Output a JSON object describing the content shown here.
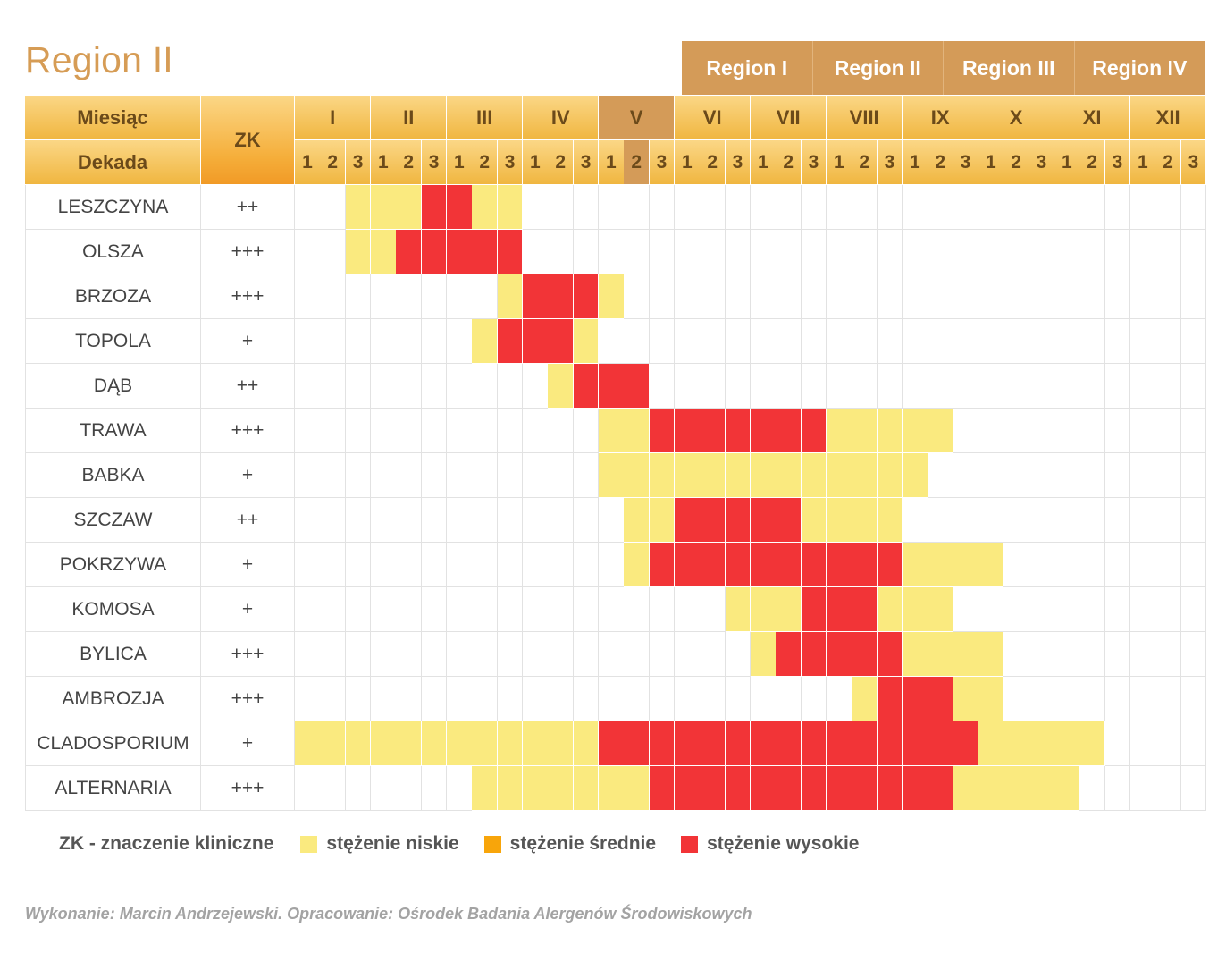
{
  "title": "Region II",
  "regions": [
    "Region I",
    "Region II",
    "Region III",
    "Region IV"
  ],
  "header": {
    "month_label": "Miesiąc",
    "decade_label": "Dekada",
    "zk_label": "ZK"
  },
  "months": [
    "I",
    "II",
    "III",
    "IV",
    "V",
    "VI",
    "VII",
    "VIII",
    "IX",
    "X",
    "XI",
    "XII"
  ],
  "current_month_index": 4,
  "current_decade_index": 13,
  "decades": [
    "1",
    "2",
    "3"
  ],
  "levels": {
    "low": "stężenie niskie",
    "medium": "stężenie średnie",
    "high": "stężenie wysokie"
  },
  "colors": {
    "low": "#faea7f",
    "medium": "#f8a50a",
    "high": "#f23437",
    "header": "#f0b640",
    "accent": "#d49b58"
  },
  "legend": {
    "note": "ZK - znaczenie kliniczne"
  },
  "credit": "Wykonanie: Marcin Andrzejewski. Opracowanie: Ośrodek Badania Alergenów Środowiskowych",
  "chart_data": {
    "type": "heatmap",
    "title": "Region II",
    "x_unit": "dekada (1-36)",
    "level_codes": {
      "0": "brak",
      "1": "stężenie niskie",
      "2": "stężenie średnie",
      "3": "stężenie wysokie"
    },
    "series": [
      {
        "name": "LESZCZYNA",
        "zk": "++",
        "values": [
          0,
          0,
          1,
          1,
          1,
          3,
          3,
          1,
          1,
          0,
          0,
          0,
          0,
          0,
          0,
          0,
          0,
          0,
          0,
          0,
          0,
          0,
          0,
          0,
          0,
          0,
          0,
          0,
          0,
          0,
          0,
          0,
          0,
          0,
          0,
          0
        ]
      },
      {
        "name": "OLSZA",
        "zk": "+++",
        "values": [
          0,
          0,
          1,
          1,
          3,
          3,
          3,
          3,
          3,
          0,
          0,
          0,
          0,
          0,
          0,
          0,
          0,
          0,
          0,
          0,
          0,
          0,
          0,
          0,
          0,
          0,
          0,
          0,
          0,
          0,
          0,
          0,
          0,
          0,
          0,
          0
        ]
      },
      {
        "name": "BRZOZA",
        "zk": "+++",
        "values": [
          0,
          0,
          0,
          0,
          0,
          0,
          0,
          0,
          1,
          3,
          3,
          3,
          1,
          0,
          0,
          0,
          0,
          0,
          0,
          0,
          0,
          0,
          0,
          0,
          0,
          0,
          0,
          0,
          0,
          0,
          0,
          0,
          0,
          0,
          0,
          0
        ]
      },
      {
        "name": "TOPOLA",
        "zk": "+",
        "values": [
          0,
          0,
          0,
          0,
          0,
          0,
          0,
          1,
          3,
          3,
          3,
          1,
          0,
          0,
          0,
          0,
          0,
          0,
          0,
          0,
          0,
          0,
          0,
          0,
          0,
          0,
          0,
          0,
          0,
          0,
          0,
          0,
          0,
          0,
          0,
          0
        ]
      },
      {
        "name": "DĄB",
        "zk": "++",
        "values": [
          0,
          0,
          0,
          0,
          0,
          0,
          0,
          0,
          0,
          0,
          1,
          3,
          3,
          3,
          0,
          0,
          0,
          0,
          0,
          0,
          0,
          0,
          0,
          0,
          0,
          0,
          0,
          0,
          0,
          0,
          0,
          0,
          0,
          0,
          0,
          0
        ]
      },
      {
        "name": "TRAWA",
        "zk": "+++",
        "values": [
          0,
          0,
          0,
          0,
          0,
          0,
          0,
          0,
          0,
          0,
          0,
          0,
          1,
          1,
          3,
          3,
          3,
          3,
          3,
          3,
          3,
          1,
          1,
          1,
          1,
          1,
          0,
          0,
          0,
          0,
          0,
          0,
          0,
          0,
          0,
          0
        ]
      },
      {
        "name": "BABKA",
        "zk": "+",
        "values": [
          0,
          0,
          0,
          0,
          0,
          0,
          0,
          0,
          0,
          0,
          0,
          0,
          1,
          1,
          1,
          1,
          1,
          1,
          1,
          1,
          1,
          1,
          1,
          1,
          1,
          0,
          0,
          0,
          0,
          0,
          0,
          0,
          0,
          0,
          0,
          0
        ]
      },
      {
        "name": "SZCZAW",
        "zk": "++",
        "values": [
          0,
          0,
          0,
          0,
          0,
          0,
          0,
          0,
          0,
          0,
          0,
          0,
          0,
          1,
          1,
          3,
          3,
          3,
          3,
          3,
          1,
          1,
          1,
          1,
          0,
          0,
          0,
          0,
          0,
          0,
          0,
          0,
          0,
          0,
          0,
          0
        ]
      },
      {
        "name": "POKRZYWA",
        "zk": "+",
        "values": [
          0,
          0,
          0,
          0,
          0,
          0,
          0,
          0,
          0,
          0,
          0,
          0,
          0,
          1,
          3,
          3,
          3,
          3,
          3,
          3,
          3,
          3,
          3,
          3,
          1,
          1,
          1,
          1,
          0,
          0,
          0,
          0,
          0,
          0,
          0,
          0
        ]
      },
      {
        "name": "KOMOSA",
        "zk": "+",
        "values": [
          0,
          0,
          0,
          0,
          0,
          0,
          0,
          0,
          0,
          0,
          0,
          0,
          0,
          0,
          0,
          0,
          0,
          1,
          1,
          1,
          3,
          3,
          3,
          1,
          1,
          1,
          0,
          0,
          0,
          0,
          0,
          0,
          0,
          0,
          0,
          0
        ]
      },
      {
        "name": "BYLICA",
        "zk": "+++",
        "values": [
          0,
          0,
          0,
          0,
          0,
          0,
          0,
          0,
          0,
          0,
          0,
          0,
          0,
          0,
          0,
          0,
          0,
          0,
          1,
          3,
          3,
          3,
          3,
          3,
          1,
          1,
          1,
          1,
          0,
          0,
          0,
          0,
          0,
          0,
          0,
          0
        ]
      },
      {
        "name": "AMBROZJA",
        "zk": "+++",
        "values": [
          0,
          0,
          0,
          0,
          0,
          0,
          0,
          0,
          0,
          0,
          0,
          0,
          0,
          0,
          0,
          0,
          0,
          0,
          0,
          0,
          0,
          0,
          1,
          3,
          3,
          3,
          1,
          1,
          0,
          0,
          0,
          0,
          0,
          0,
          0,
          0
        ]
      },
      {
        "name": "CLADOSPORIUM",
        "zk": "+",
        "values": [
          1,
          1,
          1,
          1,
          1,
          1,
          1,
          1,
          1,
          1,
          1,
          1,
          3,
          3,
          3,
          3,
          3,
          3,
          3,
          3,
          3,
          3,
          3,
          3,
          3,
          3,
          3,
          1,
          1,
          1,
          1,
          1,
          0,
          0,
          0,
          0
        ]
      },
      {
        "name": "ALTERNARIA",
        "zk": "+++",
        "values": [
          0,
          0,
          0,
          0,
          0,
          0,
          0,
          1,
          1,
          1,
          1,
          1,
          1,
          1,
          3,
          3,
          3,
          3,
          3,
          3,
          3,
          3,
          3,
          3,
          3,
          3,
          1,
          1,
          1,
          1,
          1,
          0,
          0,
          0,
          0,
          0
        ]
      }
    ]
  }
}
